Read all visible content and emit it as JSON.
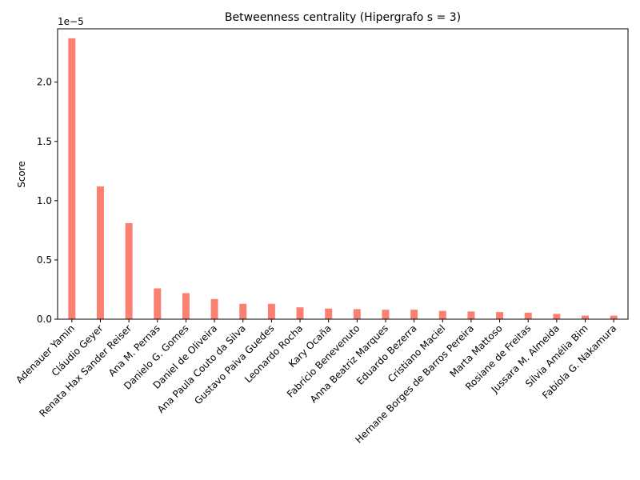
{
  "chart_data": {
    "type": "bar",
    "title": "Betweenness centrality (Hipergrafo s = 3)",
    "xlabel": "",
    "ylabel": "Score",
    "offset_label": "1e−5",
    "color": "#fa8072",
    "ylim": [
      0,
      2.45
    ],
    "yticks": [
      0.0,
      0.5,
      1.0,
      1.5,
      2.0
    ],
    "ytick_labels": [
      "0.0",
      "0.5",
      "1.0",
      "1.5",
      "2.0"
    ],
    "grid": false,
    "categories": [
      "Adenauer Yamin",
      "Cláudio Geyer",
      "Renata Hax Sander Reiser",
      "Ana M. Pernas",
      "Danielo G. Gomes",
      "Daniel de Oliveira",
      "Ana Paula Couto da Silva",
      "Gustavo Paiva Guedes",
      "Leonardo Rocha",
      "Kary Ocaña",
      "Fabrício Benevenuto",
      "Anna Beatriz Marques",
      "Eduardo Bezerra",
      "Cristiano Maciel",
      "Hernane Borges de Barros Pereira",
      "Marta Mattoso",
      "Rosiane de Freitas",
      "Jussara M. Almeida",
      "Sílvia Amélia Bim",
      "Fabíola G. Nakamura"
    ],
    "values": [
      2.37,
      1.12,
      0.81,
      0.26,
      0.22,
      0.17,
      0.13,
      0.13,
      0.1,
      0.09,
      0.085,
      0.08,
      0.08,
      0.07,
      0.065,
      0.06,
      0.055,
      0.045,
      0.03,
      0.03
    ]
  }
}
